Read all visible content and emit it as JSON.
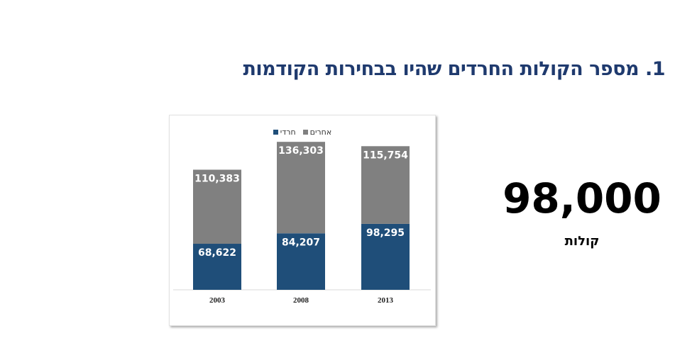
{
  "title": "1. מספר הקולות החרדים שהיו בבחירות הקודמות",
  "highlight": {
    "value": "98,000",
    "unit": "קולות"
  },
  "chart_data": {
    "type": "bar",
    "stacked": true,
    "categories": [
      "2003",
      "2008",
      "2013"
    ],
    "series": [
      {
        "name": "חרדי",
        "values": [
          68622,
          84207,
          98295
        ],
        "labels": [
          "68,622",
          "84,207",
          "98,295"
        ],
        "color": "#1f4e79"
      },
      {
        "name": "אחרים",
        "values": [
          110383,
          136303,
          115754
        ],
        "labels": [
          "110,383",
          "136,303",
          "115,754"
        ],
        "color": "#808080"
      }
    ],
    "legend": "top",
    "grid": false,
    "ylim": [
      0,
      230000
    ]
  }
}
